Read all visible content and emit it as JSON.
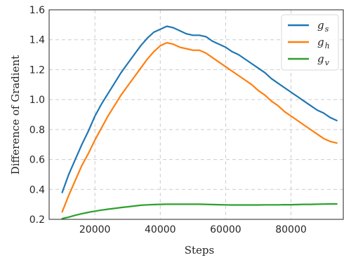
{
  "chart_data": {
    "type": "line",
    "title": "",
    "xlabel": "Steps",
    "ylabel": "Difference of Gradient",
    "xlim": [
      6000,
      96000
    ],
    "ylim": [
      0.2,
      1.6
    ],
    "xticks": [
      20000,
      40000,
      60000,
      80000
    ],
    "xtick_labels": [
      "20000",
      "40000",
      "60000",
      "80000"
    ],
    "yticks": [
      0.2,
      0.4,
      0.6,
      0.8,
      1.0,
      1.2,
      1.4,
      1.6
    ],
    "ytick_labels": [
      "0.2",
      "0.4",
      "0.6",
      "0.8",
      "1.0",
      "1.2",
      "1.4",
      "1.6"
    ],
    "grid": true,
    "legend_position": "top-right",
    "x": [
      10000,
      12000,
      14000,
      16000,
      18000,
      20000,
      22000,
      24000,
      26000,
      28000,
      30000,
      32000,
      34000,
      36000,
      38000,
      40000,
      42000,
      44000,
      46000,
      48000,
      50000,
      52000,
      54000,
      56000,
      58000,
      60000,
      62000,
      64000,
      66000,
      68000,
      70000,
      72000,
      74000,
      76000,
      78000,
      80000,
      82000,
      84000,
      86000,
      88000,
      90000,
      92000,
      94000
    ],
    "series": [
      {
        "name": "g",
        "subscript": "s",
        "color": "#1f77b4",
        "values": [
          0.38,
          0.5,
          0.6,
          0.7,
          0.79,
          0.89,
          0.97,
          1.04,
          1.11,
          1.18,
          1.24,
          1.3,
          1.36,
          1.41,
          1.45,
          1.47,
          1.49,
          1.48,
          1.46,
          1.44,
          1.43,
          1.43,
          1.42,
          1.39,
          1.37,
          1.35,
          1.32,
          1.3,
          1.27,
          1.24,
          1.21,
          1.18,
          1.14,
          1.11,
          1.08,
          1.05,
          1.02,
          0.99,
          0.96,
          0.93,
          0.91,
          0.88,
          0.86
        ]
      },
      {
        "name": "g",
        "subscript": "h",
        "color": "#ff7f0e",
        "values": [
          0.25,
          0.36,
          0.46,
          0.56,
          0.64,
          0.73,
          0.81,
          0.89,
          0.96,
          1.03,
          1.09,
          1.15,
          1.21,
          1.27,
          1.32,
          1.36,
          1.38,
          1.37,
          1.35,
          1.34,
          1.33,
          1.33,
          1.31,
          1.28,
          1.25,
          1.22,
          1.19,
          1.16,
          1.13,
          1.1,
          1.06,
          1.03,
          0.99,
          0.96,
          0.92,
          0.89,
          0.86,
          0.83,
          0.8,
          0.77,
          0.74,
          0.72,
          0.71
        ]
      },
      {
        "name": "g",
        "subscript": "v",
        "color": "#2ca02c",
        "values": [
          0.205,
          0.215,
          0.227,
          0.238,
          0.247,
          0.255,
          0.262,
          0.268,
          0.273,
          0.279,
          0.284,
          0.289,
          0.294,
          0.297,
          0.299,
          0.3,
          0.301,
          0.301,
          0.301,
          0.301,
          0.301,
          0.301,
          0.3,
          0.299,
          0.298,
          0.297,
          0.296,
          0.296,
          0.296,
          0.296,
          0.296,
          0.297,
          0.297,
          0.297,
          0.298,
          0.298,
          0.299,
          0.3,
          0.3,
          0.301,
          0.302,
          0.303,
          0.303
        ]
      }
    ]
  }
}
